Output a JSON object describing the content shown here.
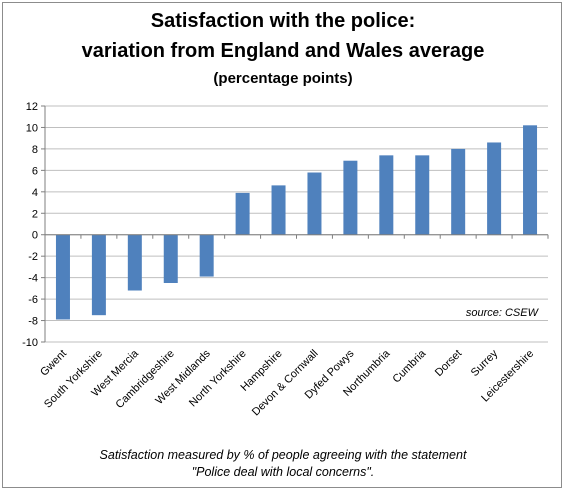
{
  "title_line1": "Satisfaction with the police:",
  "title_line2": "variation from England and Wales average",
  "subtitle": "(percentage points)",
  "source": "source:  CSEW",
  "footnote_line1": "Satisfaction measured by % of people agreeing with the statement",
  "footnote_line2": "\"Police deal with local concerns\".",
  "colors": {
    "bar": "#4f81bd",
    "grid": "#bfbfbf",
    "axis": "#7f7f7f"
  },
  "chart_data": {
    "type": "bar",
    "title": "Satisfaction with the police: variation from England and Wales average",
    "subtitle": "(percentage points)",
    "categories": [
      "Gwent",
      "South Yorkshire",
      "West Mercia",
      "Cambridgeshire",
      "West Midlands",
      "North Yorkshire",
      "Hampshire",
      "Devon & Cornwall",
      "Dyfed Powys",
      "Northumbria",
      "Cumbria",
      "Dorset",
      "Surrey",
      "Leicestershire"
    ],
    "values": [
      -7.9,
      -7.5,
      -5.2,
      -4.5,
      -3.9,
      3.9,
      4.6,
      5.8,
      6.9,
      7.4,
      7.4,
      8.0,
      8.6,
      10.2
    ],
    "ylim": [
      -10,
      12
    ],
    "yticks": [
      -10,
      -8,
      -6,
      -4,
      -2,
      0,
      2,
      4,
      6,
      8,
      10,
      12
    ],
    "grid": true,
    "legend": "none"
  }
}
